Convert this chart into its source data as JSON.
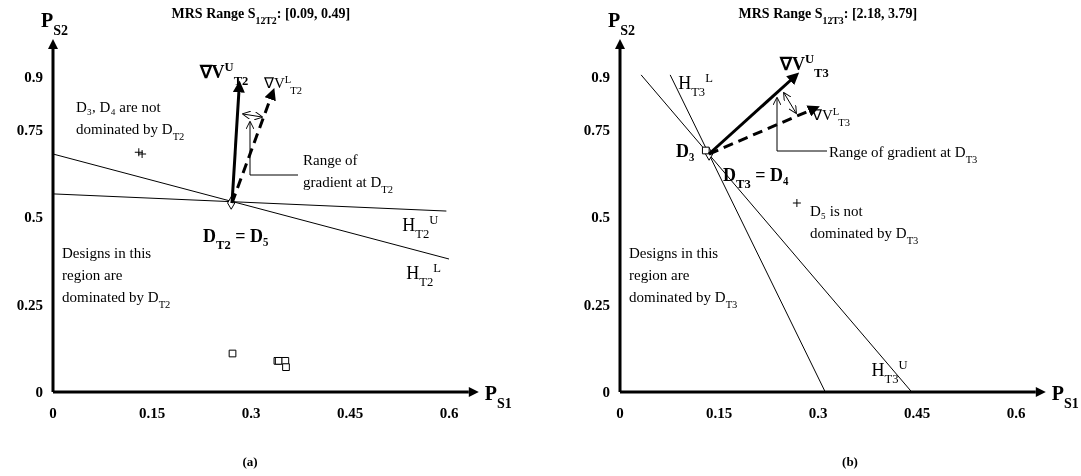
{
  "chart_data": [
    {
      "type": "line",
      "title": "MRS Range S$_{12T2}$: [0.09, 0.49]",
      "xlabel": "P$_{S1}$",
      "ylabel": "P$_{S2}$",
      "xlim": [
        0,
        0.63
      ],
      "ylim": [
        0,
        0.98
      ],
      "xticks": [
        0,
        0.15,
        0.3,
        0.45,
        0.6
      ],
      "yticks": [
        0,
        0.25,
        0.5,
        0.75,
        0.9
      ],
      "series": [
        {
          "name": "H$_{T2}$$^{U}$",
          "color": "#000000",
          "line_style": "solid",
          "x": [
            0,
            0.596
          ],
          "values": [
            0.566,
            0.517
          ]
        },
        {
          "name": "H$_{T2}$$^{L}$",
          "color": "#000000",
          "line_style": "solid",
          "x": [
            0,
            0.6
          ],
          "values": [
            0.68,
            0.38
          ]
        },
        {
          "type": "scatter",
          "color": "#000000",
          "marker": "diamond",
          "x": [
            0.27
          ],
          "values": [
            0.54
          ]
        },
        {
          "type": "scatter",
          "color": "#000000",
          "marker": "cross",
          "x": [
            0.13,
            0.135
          ],
          "values": [
            0.685,
            0.68
          ]
        },
        {
          "type": "scatter",
          "color": "#000000",
          "marker": "square",
          "x": [
            0.272,
            0.34,
            0.342,
            0.352,
            0.353
          ],
          "values": [
            0.11,
            0.089,
            0.089,
            0.089,
            0.071
          ]
        }
      ],
      "annotations": [
        "D₃, D₄ are not\ndominated by D$_{T2}$",
        "Range of\ngradient at D$_{T2}$",
        "D$_{T2}$ = D₅",
        "Designs in this\nregion are\ndominated by D$_{T2}$",
        "∇V$^{U}$$_{T2}$",
        "∇V$^{L}$$_{T2}$",
        "(a)"
      ]
    },
    {
      "type": "line",
      "title": "MRS Range S$_{12T3}$: [2.18, 3.79]",
      "xlabel": "P$_{S1}$",
      "ylabel": "P$_{S2}$",
      "xlim": [
        0,
        0.63
      ],
      "ylim": [
        0,
        0.98
      ],
      "xticks": [
        0,
        0.15,
        0.3,
        0.45,
        0.6
      ],
      "yticks": [
        0,
        0.25,
        0.5,
        0.75,
        0.9
      ],
      "series": [
        {
          "name": "H$_{T3}$$^{L}$",
          "color": "#000000",
          "line_style": "solid",
          "x": [
            0.311,
            0.076
          ],
          "values": [
            0,
            0.906
          ]
        },
        {
          "name": "H$_{T3}$$^{U}$",
          "color": "#000000",
          "line_style": "solid",
          "x": [
            0.032,
            0.442
          ],
          "values": [
            0.906,
            0
          ]
        },
        {
          "type": "scatter",
          "color": "#000000",
          "marker": "diamond",
          "x": [
            0.135
          ],
          "values": [
            0.68
          ]
        },
        {
          "type": "scatter",
          "color": "#000000",
          "marker": "square",
          "x": [
            0.13
          ],
          "values": [
            0.69
          ]
        },
        {
          "type": "scatter",
          "color": "#000000",
          "marker": "cross",
          "x": [
            0.268
          ],
          "values": [
            0.54
          ]
        }
      ],
      "annotations": [
        "D₃",
        "D$_{T3}$ = D₄",
        "Range of gradient at D$_{T3}$",
        "D₅ is not\ndominated by D$_{T3}$",
        "Designs in this\nregion are\ndominated by D$_{T3}$",
        "∇V$^{U}$$_{T3}$",
        "∇V$^{L}$$_{T3}$",
        "(b)"
      ]
    }
  ]
}
